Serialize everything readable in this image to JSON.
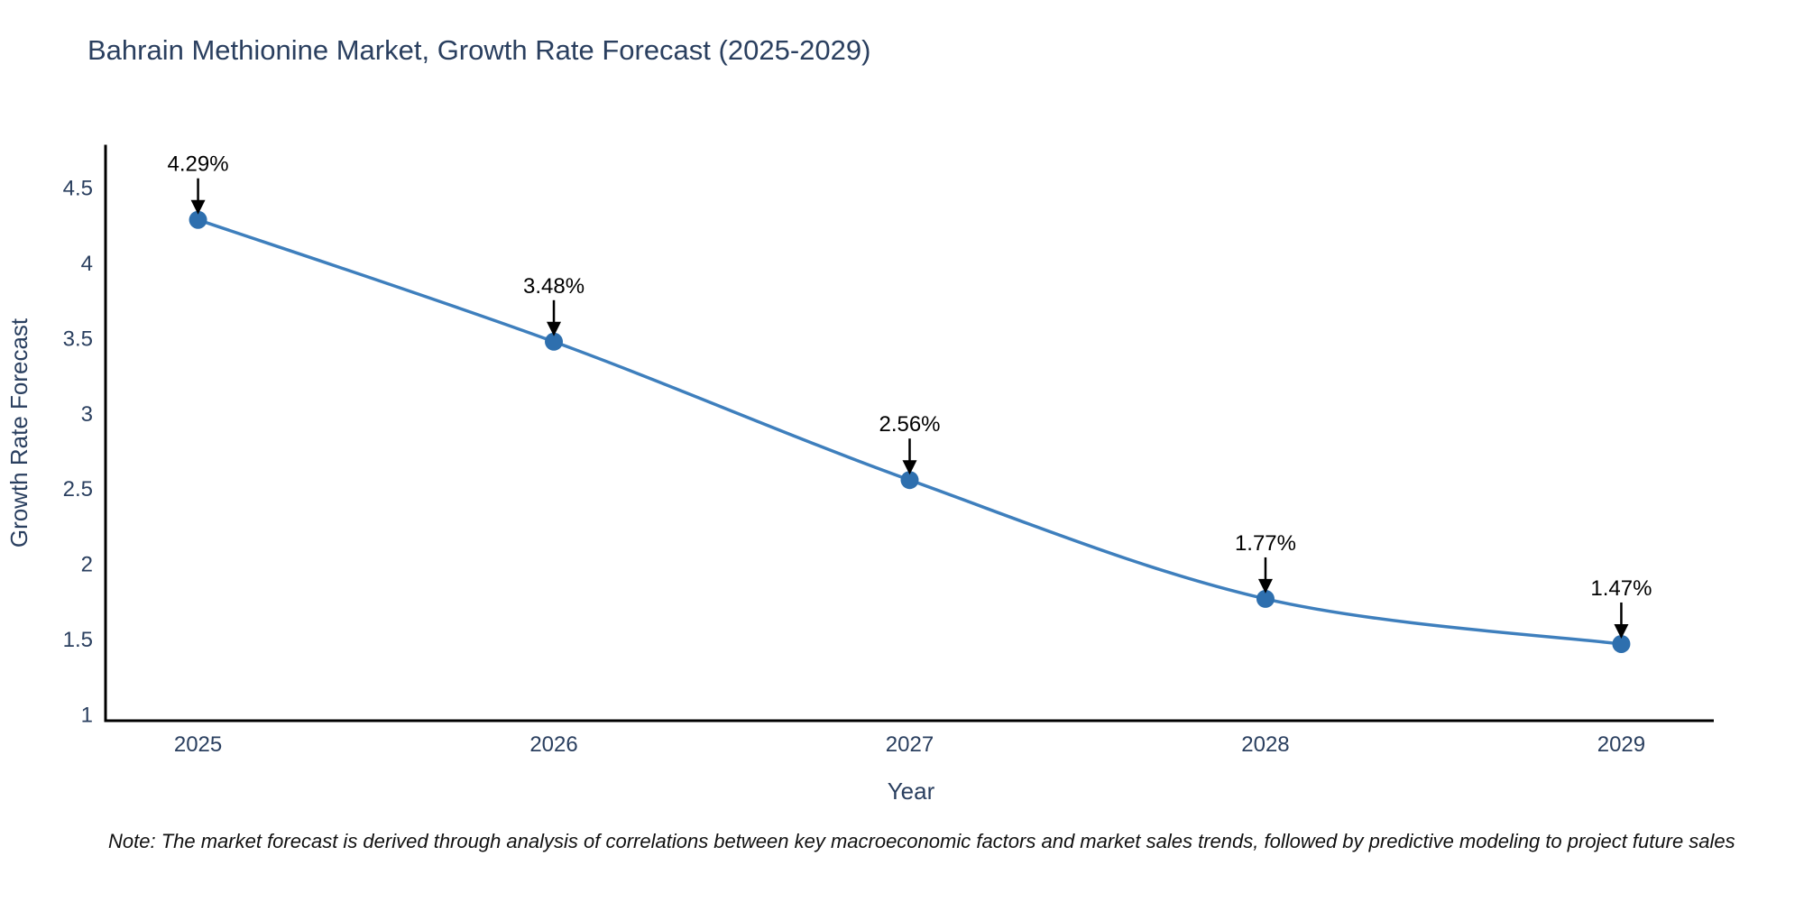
{
  "title": "Bahrain Methionine Market, Growth Rate Forecast (2025-2029)",
  "note": "Note: The market forecast is derived through analysis of correlations between key macroeconomic factors and market sales trends, followed by predictive modeling to project future sales",
  "chart_data": {
    "type": "line",
    "title": "Bahrain Methionine Market, Growth Rate Forecast (2025-2029)",
    "xlabel": "Year",
    "ylabel": "Growth Rate Forecast",
    "x": [
      2025,
      2026,
      2027,
      2028,
      2029
    ],
    "y": [
      4.29,
      3.48,
      2.56,
      1.77,
      1.47
    ],
    "point_labels": [
      "4.29%",
      "3.48%",
      "2.56%",
      "1.77%",
      "1.47%"
    ],
    "xticks": [
      2025,
      2026,
      2027,
      2028,
      2029
    ],
    "yticks": [
      1,
      1.5,
      2,
      2.5,
      3,
      3.5,
      4,
      4.5
    ],
    "xlim": [
      2024.74,
      2029.26
    ],
    "ylim": [
      0.96,
      4.78
    ],
    "grid": false,
    "legend_position": "none",
    "line_shape": "spline",
    "colors": {
      "line": "#3e7fbd",
      "marker": "#2e6fae",
      "axis": "#000000",
      "text": "#2a3f5f",
      "annotation": "#000000",
      "background": "#ffffff"
    }
  }
}
